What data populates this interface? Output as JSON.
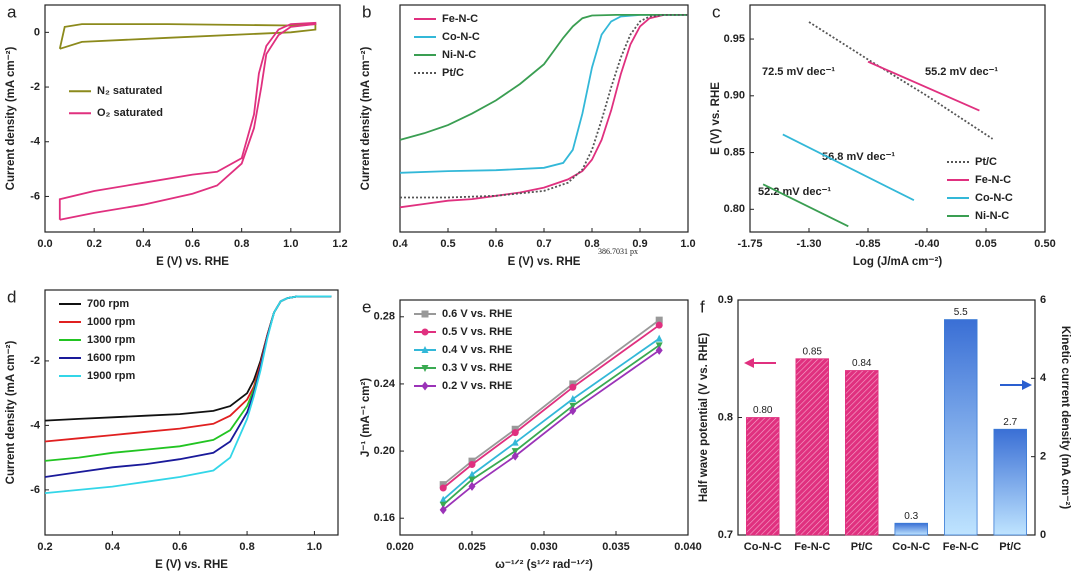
{
  "chart_data": [
    {
      "type": "line",
      "label": "a",
      "xlabel": "E (V) vs. RHE",
      "ylabel": "Current density (mA cm⁻²)",
      "xlim": [
        0,
        1.2
      ],
      "xticks": [
        {
          "value": 0,
          "label": "0.0"
        },
        0.2,
        0.4,
        0.6,
        0.8,
        {
          "value": 1,
          "label": "1.0"
        },
        1.2
      ],
      "ylim": [
        -7.3,
        1.0
      ],
      "yticks": [
        0,
        -2,
        -4,
        -6
      ],
      "legend": "center left",
      "series": [
        {
          "name": "N₂ saturated",
          "color": "#8c8a1c",
          "x": [
            0.06,
            0.08,
            0.15,
            0.5,
            1.0,
            1.1,
            1.1,
            1.0,
            0.5,
            0.15,
            0.06
          ],
          "values": [
            -0.6,
            0.2,
            0.3,
            0.3,
            0.25,
            0.3,
            0.1,
            0,
            -0.2,
            -0.35,
            -0.6
          ]
        },
        {
          "name": "O₂ saturated",
          "color": "#e0307f",
          "x": [
            0.06,
            0.2,
            0.4,
            0.6,
            0.7,
            0.8,
            0.85,
            0.88,
            0.9,
            0.95,
            1.0,
            1.1,
            1.1,
            1.0,
            0.95,
            0.9,
            0.87,
            0.85,
            0.8,
            0.7,
            0.6,
            0.4,
            0.2,
            0.06,
            0.06
          ],
          "values": [
            -6.85,
            -6.6,
            -6.3,
            -5.9,
            -5.6,
            -4.8,
            -3.5,
            -2.0,
            -0.8,
            -0.1,
            0.2,
            0.3,
            0.35,
            0.3,
            0.1,
            -0.5,
            -1.5,
            -3.0,
            -4.6,
            -5.1,
            -5.2,
            -5.5,
            -5.8,
            -6.1,
            -6.85
          ]
        }
      ]
    },
    {
      "type": "line",
      "label": "b",
      "xlabel": "E (V) vs. RHE",
      "ylabel": "Current density (mA cm⁻²)",
      "xlim": [
        0.4,
        1.0
      ],
      "xticks": [
        0.4,
        0.5,
        0.6,
        0.7,
        0.8,
        0.9,
        {
          "value": 1,
          "label": "1.0"
        }
      ],
      "ylim": [
        -6.6,
        0.3
      ],
      "legend": "upper left",
      "annotations": [
        {
          "text": "386.7031 px",
          "color": "#888888"
        }
      ],
      "series": [
        {
          "name": "Fe-N-C",
          "color": "#e0307f",
          "x": [
            0.4,
            0.45,
            0.5,
            0.55,
            0.6,
            0.65,
            0.7,
            0.75,
            0.78,
            0.8,
            0.82,
            0.84,
            0.86,
            0.88,
            0.9,
            0.92,
            0.95,
            1.0
          ],
          "values": [
            -5.85,
            -5.75,
            -5.65,
            -5.6,
            -5.5,
            -5.4,
            -5.25,
            -5.0,
            -4.75,
            -4.4,
            -3.8,
            -2.9,
            -1.8,
            -0.9,
            -0.35,
            -0.1,
            0,
            0
          ]
        },
        {
          "name": "Co-N-C",
          "color": "#33b8d8",
          "x": [
            0.4,
            0.5,
            0.6,
            0.7,
            0.74,
            0.76,
            0.78,
            0.8,
            0.82,
            0.84,
            0.86,
            0.9,
            0.95,
            1.0
          ],
          "values": [
            -4.8,
            -4.75,
            -4.72,
            -4.65,
            -4.5,
            -4.1,
            -3.0,
            -1.6,
            -0.6,
            -0.2,
            -0.05,
            0,
            0,
            0
          ]
        },
        {
          "name": "Ni-N-C",
          "color": "#3a9e52",
          "x": [
            0.4,
            0.45,
            0.5,
            0.55,
            0.6,
            0.65,
            0.7,
            0.72,
            0.74,
            0.76,
            0.78,
            0.8,
            0.85,
            0.9,
            1.0
          ],
          "values": [
            -3.8,
            -3.6,
            -3.35,
            -3.0,
            -2.6,
            -2.1,
            -1.5,
            -1.1,
            -0.7,
            -0.35,
            -0.1,
            -0.02,
            0,
            0,
            0
          ]
        },
        {
          "name": "Pt/C",
          "color": "#555555",
          "line_style": "dotted",
          "x": [
            0.4,
            0.5,
            0.6,
            0.7,
            0.75,
            0.78,
            0.8,
            0.82,
            0.84,
            0.86,
            0.88,
            0.9,
            0.92,
            0.95,
            1.0
          ],
          "values": [
            -5.55,
            -5.55,
            -5.5,
            -5.35,
            -5.1,
            -4.7,
            -4.1,
            -3.2,
            -2.2,
            -1.3,
            -0.6,
            -0.2,
            -0.05,
            0,
            0
          ]
        }
      ]
    },
    {
      "type": "line",
      "label": "c",
      "xlabel": "Log (J/mA cm⁻²)",
      "ylabel": "E (V) vs. RHE",
      "xlim": [
        -1.75,
        0.5
      ],
      "xticks": [
        -1.75,
        {
          "value": -1.3,
          "label": "-1.30"
        },
        -0.85,
        {
          "value": -0.4,
          "label": "-0.40"
        },
        0.05,
        {
          "value": 0.5,
          "label": "0.50"
        }
      ],
      "ylim": [
        0.78,
        0.98
      ],
      "yticks": [
        {
          "value": 0.8,
          "label": "0.80"
        },
        0.85,
        {
          "value": 0.9,
          "label": "0.90"
        },
        0.95
      ],
      "legend": "lower right",
      "annotations": [
        {
          "text": "72.5 mV dec⁻¹",
          "color": "#555555"
        },
        {
          "text": "55.2 mV dec⁻¹",
          "color": "#e0307f"
        },
        {
          "text": "56.8 mV dec⁻¹",
          "color": "#33b8d8"
        },
        {
          "text": "52.2 mV dec⁻¹",
          "color": "#3a9e52"
        }
      ],
      "series": [
        {
          "name": "Pt/C",
          "color": "#555555",
          "line_style": "dotted",
          "x": [
            -1.3,
            -0.85,
            -0.4,
            0.1
          ],
          "values": [
            0.965,
            0.932,
            0.9,
            0.862
          ]
        },
        {
          "name": "Fe-N-C",
          "color": "#e0307f",
          "x": [
            -0.85,
            0.0
          ],
          "values": [
            0.93,
            0.887
          ]
        },
        {
          "name": "Co-N-C",
          "color": "#33b8d8",
          "x": [
            -1.5,
            -0.5
          ],
          "values": [
            0.866,
            0.808
          ]
        },
        {
          "name": "Ni-N-C",
          "color": "#3a9e52",
          "x": [
            -1.65,
            -1.0
          ],
          "values": [
            0.822,
            0.785
          ]
        }
      ]
    },
    {
      "type": "line",
      "label": "d",
      "xlabel": "E (V) vs. RHE",
      "ylabel": "Current density (mA cm⁻²)",
      "xlim": [
        0.2,
        1.07
      ],
      "xticks": [
        0.2,
        0.4,
        0.6,
        0.8,
        {
          "value": 1,
          "label": "1.0"
        }
      ],
      "ylim": [
        -7.4,
        0.2
      ],
      "yticks": [
        -2,
        -4,
        -6
      ],
      "legend": "upper left",
      "x": [
        0.2,
        0.3,
        0.4,
        0.5,
        0.6,
        0.7,
        0.75,
        0.8,
        0.82,
        0.84,
        0.86,
        0.88,
        0.9,
        0.92,
        0.95,
        1.0,
        1.05
      ],
      "series": [
        {
          "name": "700 rpm",
          "color": "#111111",
          "values": [
            -3.85,
            -3.8,
            -3.75,
            -3.7,
            -3.65,
            -3.55,
            -3.4,
            -3.0,
            -2.6,
            -2.0,
            -1.2,
            -0.5,
            -0.15,
            -0.05,
            0,
            0,
            0
          ]
        },
        {
          "name": "1000 rpm",
          "color": "#e02020",
          "values": [
            -4.5,
            -4.4,
            -4.3,
            -4.2,
            -4.1,
            -3.95,
            -3.7,
            -3.2,
            -2.8,
            -2.1,
            -1.2,
            -0.5,
            -0.15,
            -0.05,
            0,
            0,
            0
          ]
        },
        {
          "name": "1300 rpm",
          "color": "#22c422",
          "values": [
            -5.1,
            -5.0,
            -4.85,
            -4.75,
            -4.65,
            -4.45,
            -4.15,
            -3.4,
            -2.9,
            -2.2,
            -1.25,
            -0.5,
            -0.15,
            -0.05,
            0,
            0,
            0
          ]
        },
        {
          "name": "1600 rpm",
          "color": "#1a1a9a",
          "values": [
            -5.6,
            -5.45,
            -5.3,
            -5.2,
            -5.05,
            -4.85,
            -4.5,
            -3.6,
            -3.0,
            -2.2,
            -1.25,
            -0.5,
            -0.15,
            -0.05,
            0,
            0,
            0
          ]
        },
        {
          "name": "1900 rpm",
          "color": "#33d6e8",
          "values": [
            -6.1,
            -6.0,
            -5.9,
            -5.75,
            -5.6,
            -5.4,
            -5.0,
            -3.8,
            -3.1,
            -2.3,
            -1.3,
            -0.5,
            -0.15,
            -0.05,
            0,
            0,
            0
          ]
        }
      ]
    },
    {
      "type": "line",
      "label": "e",
      "xlabel": "ω⁻¹ᐟ² (s¹ᐟ² rad⁻¹ᐟ²)",
      "ylabel": "J⁻¹ (mA⁻¹ cm²)",
      "xlim": [
        0.02,
        0.04
      ],
      "xticks": [
        {
          "value": 0.02,
          "label": "0.020"
        },
        0.025,
        {
          "value": 0.03,
          "label": "0.030"
        },
        0.035,
        {
          "value": 0.04,
          "label": "0.040"
        }
      ],
      "ylim": [
        0.15,
        0.29
      ],
      "yticks": [
        0.16,
        {
          "value": 0.2,
          "label": "0.20"
        },
        0.24,
        0.28
      ],
      "legend": "upper left",
      "x": [
        0.023,
        0.025,
        0.028,
        0.032,
        0.038
      ],
      "series": [
        {
          "name": "0.6 V vs. RHE",
          "color": "#999999",
          "marker": "square",
          "values": [
            0.18,
            0.194,
            0.213,
            0.24,
            0.278
          ]
        },
        {
          "name": "0.5 V vs. RHE",
          "color": "#e0307f",
          "marker": "circle",
          "values": [
            0.178,
            0.192,
            0.211,
            0.238,
            0.275
          ]
        },
        {
          "name": "0.4 V vs. RHE",
          "color": "#33b8d8",
          "marker": "triangle",
          "values": [
            0.171,
            0.186,
            0.205,
            0.231,
            0.267
          ]
        },
        {
          "name": "0.3 V vs. RHE",
          "color": "#3aaa52",
          "marker": "triangle-down",
          "values": [
            0.168,
            0.183,
            0.2,
            0.227,
            0.263
          ]
        },
        {
          "name": "0.2 V vs. RHE",
          "color": "#9b33b8",
          "marker": "diamond",
          "values": [
            0.165,
            0.179,
            0.197,
            0.224,
            0.26
          ]
        }
      ]
    },
    {
      "type": "bar",
      "label": "f",
      "ylabel": "Half wave potential (V vs. RHE)",
      "y2label": "Kinetic current density (mA cm⁻²)",
      "categories": [
        "Co-N-C",
        "Fe-N-C",
        "Pt/C",
        "Co-N-C",
        "Fe-N-C",
        "Pt/C"
      ],
      "ylim": [
        0.7,
        0.9
      ],
      "yticks": [
        0.7,
        0.8,
        0.9
      ],
      "y2lim": [
        0,
        6
      ],
      "y2ticks": [
        0,
        2,
        4,
        6
      ],
      "series": [
        {
          "name": "Half wave potential",
          "color": "#e0307f",
          "values": [
            0.8,
            0.85,
            0.84,
            null,
            null,
            null
          ],
          "value_labels": [
            "0.80",
            "0.85",
            "0.84",
            null,
            null,
            null
          ]
        },
        {
          "name": "Kinetic current density",
          "color": "#3a7bd5",
          "axis": "y2",
          "values": [
            null,
            null,
            null,
            0.3,
            5.5,
            2.7
          ]
        }
      ]
    }
  ]
}
